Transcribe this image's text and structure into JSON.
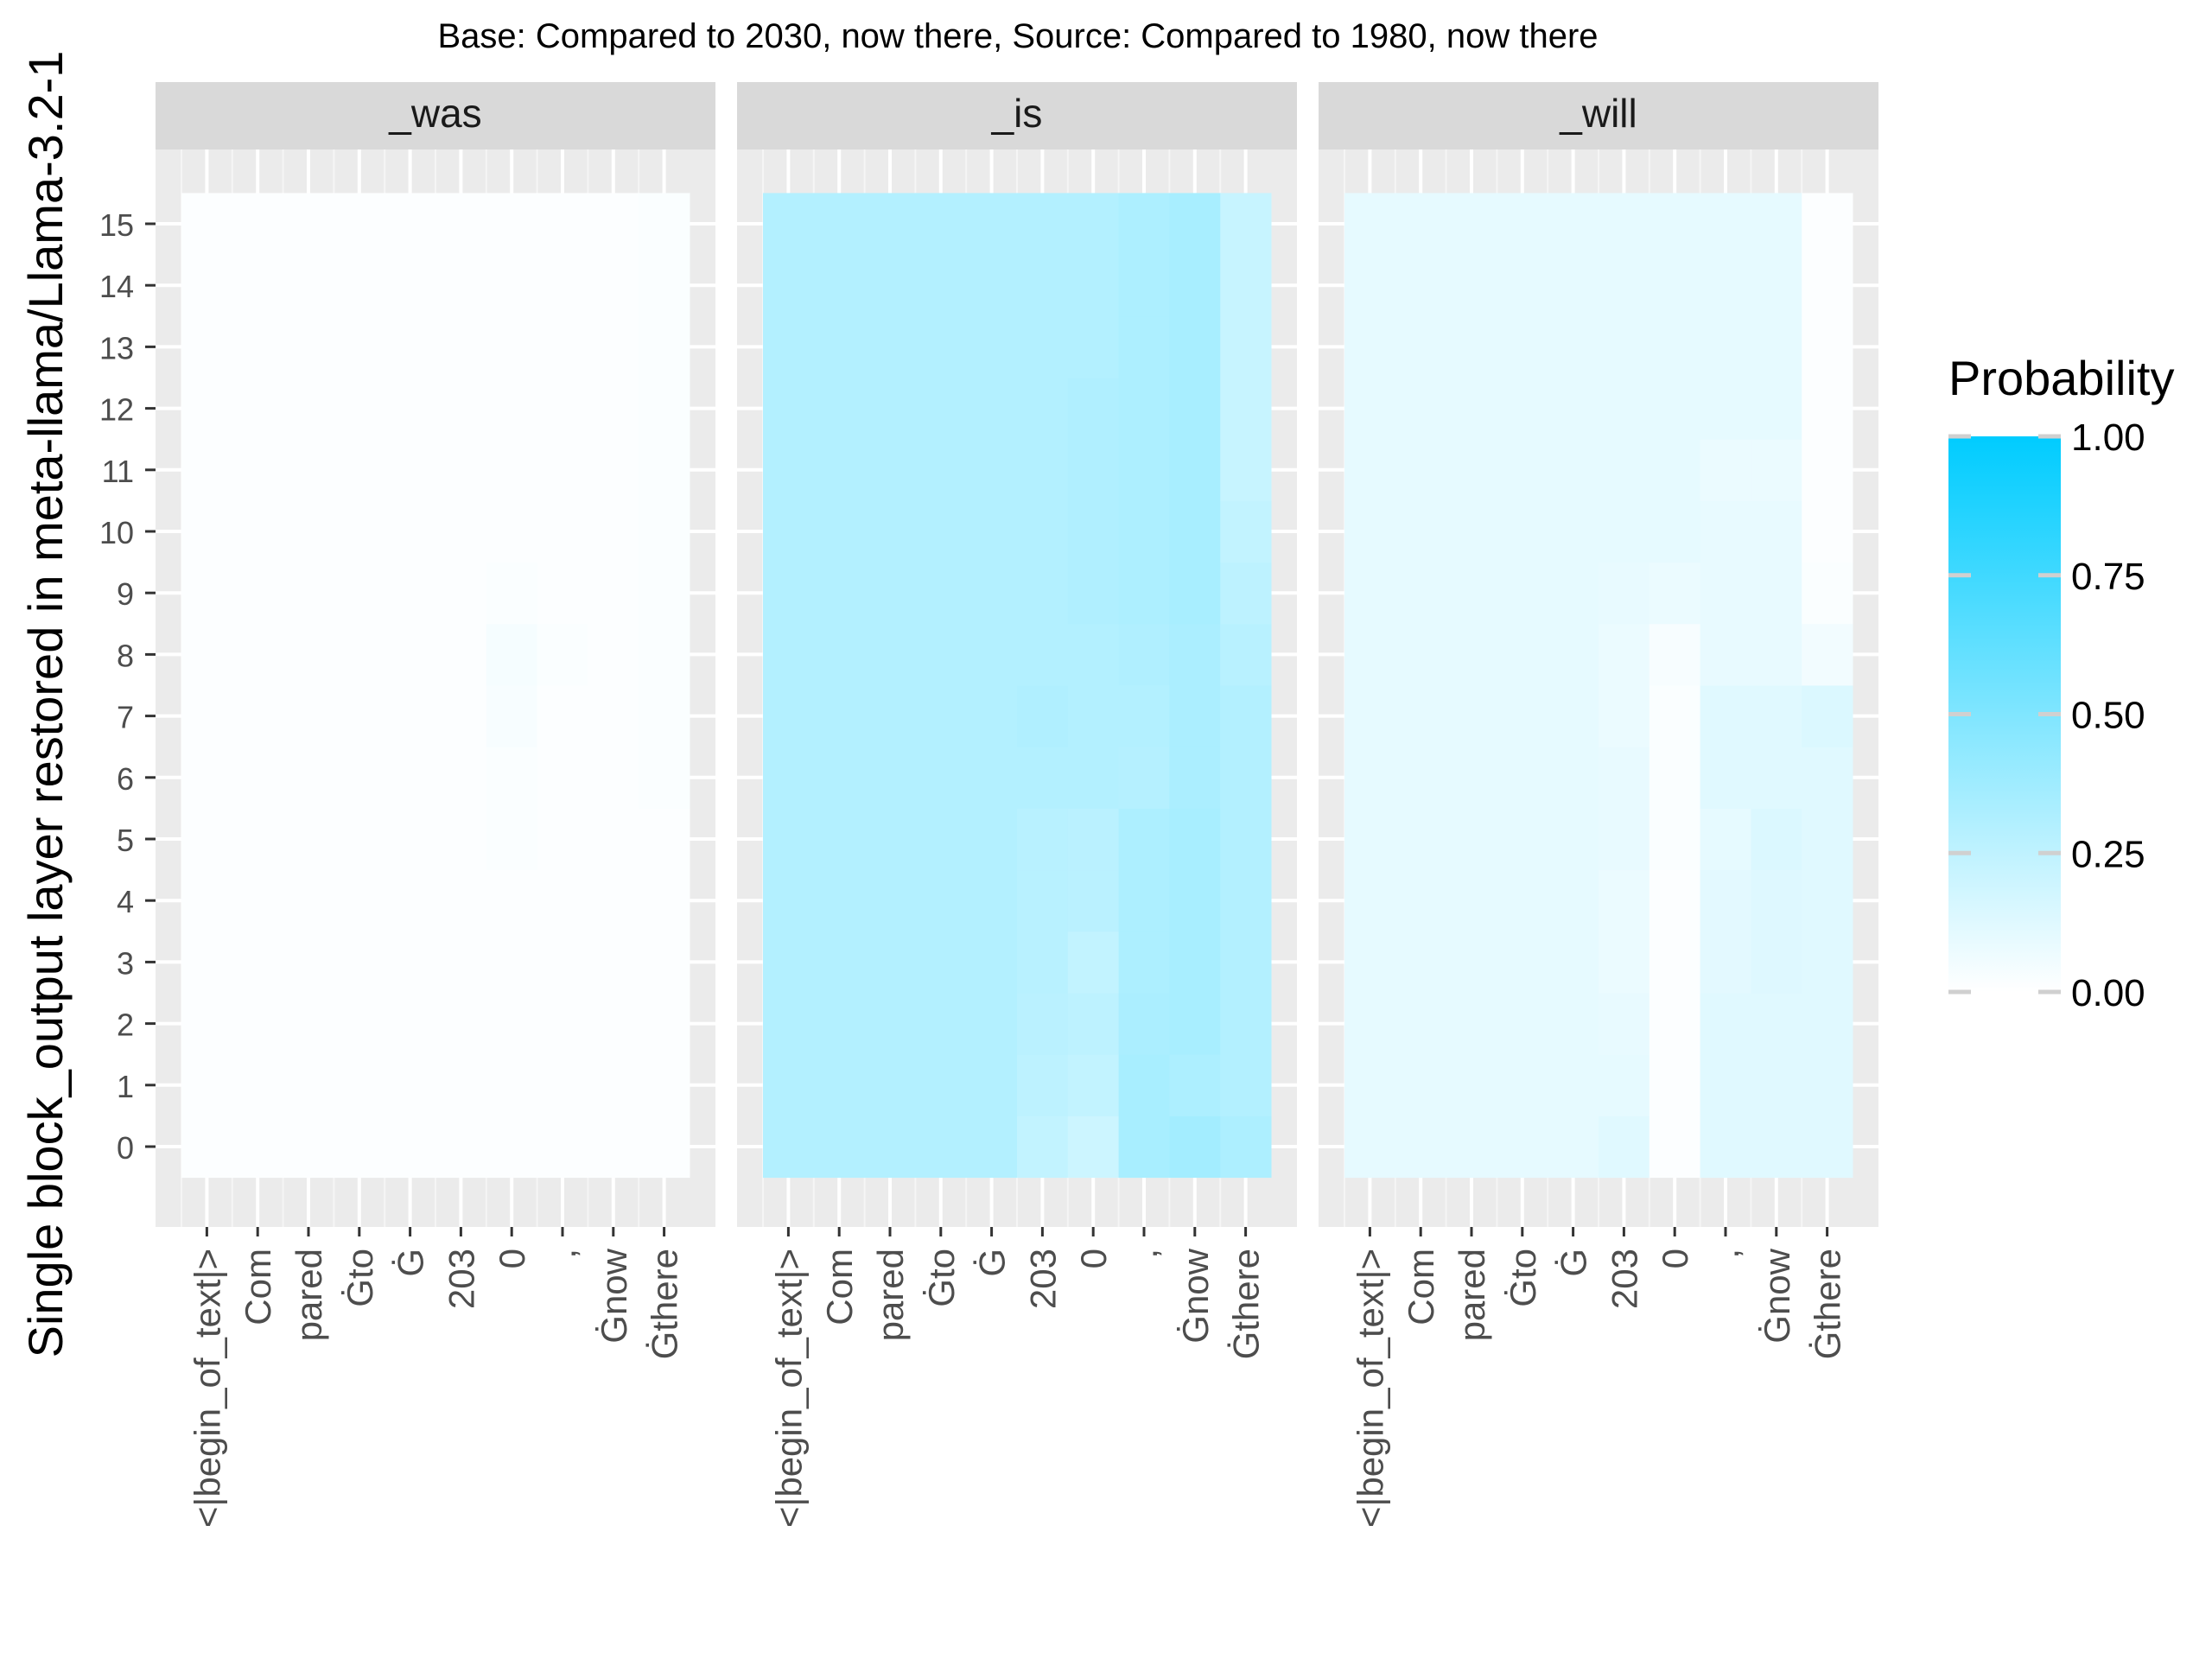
{
  "chart_data": {
    "type": "heatmap",
    "title": "Base: Compared to 2030, now there, Source: Compared to 1980, now there",
    "ylabel": "Single block_output layer restored in meta-llama/Llama-3.2-1",
    "xlabel": "",
    "x_tokens": [
      "<|begin_of_text|>",
      "Com",
      "pared",
      "Ġto",
      "Ġ",
      "203",
      "0",
      ",",
      "Ġnow",
      "Ġthere"
    ],
    "y_layers": [
      0,
      1,
      2,
      3,
      4,
      5,
      6,
      7,
      8,
      9,
      10,
      11,
      12,
      13,
      14,
      15
    ],
    "y_ticks": [
      "0",
      "1",
      "2",
      "3",
      "4",
      "5",
      "6",
      "7",
      "8",
      "9",
      "10",
      "11",
      "12",
      "13",
      "14",
      "15"
    ],
    "legend": {
      "title": "Probability",
      "position": "right",
      "ticks": [
        "1.00",
        "0.75",
        "0.50",
        "0.25",
        "0.00"
      ],
      "tick_values": [
        1.0,
        0.75,
        0.5,
        0.25,
        0.0
      ],
      "color_low": "#ffffff",
      "color_high": "#00ccff"
    },
    "panel_strip_color": "#d9d9d9",
    "panel_background": "#ebebeb",
    "grid": true,
    "panels": [
      {
        "name": "_was",
        "values": [
          [
            0.01,
            0.01,
            0.01,
            0.01,
            0.01,
            0.01,
            0.01,
            0.01,
            0.01,
            0.01
          ],
          [
            0.01,
            0.01,
            0.01,
            0.01,
            0.01,
            0.01,
            0.01,
            0.01,
            0.01,
            0.01
          ],
          [
            0.01,
            0.01,
            0.01,
            0.01,
            0.01,
            0.01,
            0.01,
            0.01,
            0.01,
            0.01
          ],
          [
            0.01,
            0.01,
            0.01,
            0.01,
            0.01,
            0.01,
            0.01,
            0.01,
            0.01,
            0.01
          ],
          [
            0.01,
            0.01,
            0.01,
            0.01,
            0.01,
            0.01,
            0.01,
            0.01,
            0.01,
            0.01
          ],
          [
            0.01,
            0.01,
            0.01,
            0.01,
            0.01,
            0.01,
            0.02,
            0.01,
            0.01,
            0.01
          ],
          [
            0.01,
            0.01,
            0.01,
            0.01,
            0.01,
            0.01,
            0.02,
            0.01,
            0.01,
            0.02
          ],
          [
            0.01,
            0.01,
            0.01,
            0.01,
            0.01,
            0.01,
            0.03,
            0.01,
            0.01,
            0.02
          ],
          [
            0.01,
            0.01,
            0.01,
            0.01,
            0.01,
            0.01,
            0.04,
            0.02,
            0.01,
            0.02
          ],
          [
            0.01,
            0.01,
            0.01,
            0.01,
            0.01,
            0.01,
            0.02,
            0.01,
            0.01,
            0.02
          ],
          [
            0.01,
            0.01,
            0.01,
            0.01,
            0.01,
            0.01,
            0.01,
            0.01,
            0.01,
            0.02
          ],
          [
            0.01,
            0.01,
            0.01,
            0.01,
            0.01,
            0.01,
            0.01,
            0.01,
            0.01,
            0.02
          ],
          [
            0.01,
            0.01,
            0.01,
            0.01,
            0.01,
            0.01,
            0.01,
            0.01,
            0.01,
            0.02
          ],
          [
            0.01,
            0.01,
            0.01,
            0.01,
            0.01,
            0.01,
            0.01,
            0.01,
            0.01,
            0.02
          ],
          [
            0.01,
            0.01,
            0.01,
            0.01,
            0.01,
            0.01,
            0.01,
            0.01,
            0.01,
            0.02
          ],
          [
            0.01,
            0.01,
            0.01,
            0.01,
            0.01,
            0.01,
            0.01,
            0.01,
            0.01,
            0.02
          ]
        ]
      },
      {
        "name": "_is",
        "values": [
          [
            0.3,
            0.3,
            0.3,
            0.3,
            0.3,
            0.24,
            0.2,
            0.34,
            0.36,
            0.32
          ],
          [
            0.3,
            0.3,
            0.3,
            0.3,
            0.3,
            0.26,
            0.24,
            0.34,
            0.32,
            0.3
          ],
          [
            0.3,
            0.3,
            0.3,
            0.3,
            0.3,
            0.27,
            0.26,
            0.33,
            0.34,
            0.3
          ],
          [
            0.3,
            0.3,
            0.3,
            0.3,
            0.3,
            0.28,
            0.24,
            0.32,
            0.34,
            0.3
          ],
          [
            0.3,
            0.3,
            0.3,
            0.3,
            0.3,
            0.28,
            0.27,
            0.32,
            0.34,
            0.3
          ],
          [
            0.3,
            0.3,
            0.3,
            0.3,
            0.3,
            0.28,
            0.27,
            0.32,
            0.34,
            0.3
          ],
          [
            0.3,
            0.3,
            0.3,
            0.3,
            0.3,
            0.3,
            0.3,
            0.29,
            0.33,
            0.3
          ],
          [
            0.3,
            0.3,
            0.3,
            0.3,
            0.3,
            0.31,
            0.3,
            0.3,
            0.33,
            0.3
          ],
          [
            0.3,
            0.3,
            0.3,
            0.3,
            0.3,
            0.3,
            0.3,
            0.31,
            0.33,
            0.28
          ],
          [
            0.3,
            0.3,
            0.3,
            0.3,
            0.3,
            0.3,
            0.31,
            0.32,
            0.34,
            0.26
          ],
          [
            0.3,
            0.3,
            0.3,
            0.3,
            0.3,
            0.3,
            0.31,
            0.32,
            0.34,
            0.24
          ],
          [
            0.3,
            0.3,
            0.3,
            0.3,
            0.3,
            0.3,
            0.31,
            0.32,
            0.34,
            0.22
          ],
          [
            0.3,
            0.3,
            0.3,
            0.3,
            0.3,
            0.3,
            0.31,
            0.32,
            0.34,
            0.22
          ],
          [
            0.3,
            0.3,
            0.3,
            0.3,
            0.3,
            0.3,
            0.3,
            0.32,
            0.34,
            0.22
          ],
          [
            0.3,
            0.3,
            0.3,
            0.3,
            0.3,
            0.3,
            0.3,
            0.32,
            0.34,
            0.22
          ],
          [
            0.3,
            0.3,
            0.3,
            0.3,
            0.3,
            0.3,
            0.3,
            0.32,
            0.34,
            0.22
          ]
        ]
      },
      {
        "name": "_will",
        "values": [
          [
            0.1,
            0.1,
            0.1,
            0.1,
            0.1,
            0.12,
            0.01,
            0.12,
            0.12,
            0.12
          ],
          [
            0.1,
            0.1,
            0.1,
            0.1,
            0.1,
            0.1,
            0.01,
            0.12,
            0.12,
            0.12
          ],
          [
            0.1,
            0.1,
            0.1,
            0.1,
            0.1,
            0.09,
            0.01,
            0.12,
            0.12,
            0.12
          ],
          [
            0.1,
            0.1,
            0.1,
            0.1,
            0.1,
            0.08,
            0.01,
            0.11,
            0.13,
            0.12
          ],
          [
            0.1,
            0.1,
            0.1,
            0.1,
            0.1,
            0.08,
            0.01,
            0.11,
            0.13,
            0.12
          ],
          [
            0.1,
            0.1,
            0.1,
            0.1,
            0.1,
            0.09,
            0.02,
            0.1,
            0.14,
            0.12
          ],
          [
            0.1,
            0.1,
            0.1,
            0.1,
            0.1,
            0.09,
            0.02,
            0.12,
            0.12,
            0.12
          ],
          [
            0.1,
            0.1,
            0.1,
            0.1,
            0.1,
            0.08,
            0.02,
            0.12,
            0.12,
            0.14
          ],
          [
            0.1,
            0.1,
            0.1,
            0.1,
            0.1,
            0.08,
            0.03,
            0.09,
            0.09,
            0.05
          ],
          [
            0.1,
            0.1,
            0.1,
            0.1,
            0.1,
            0.09,
            0.08,
            0.09,
            0.09,
            0.02
          ],
          [
            0.1,
            0.1,
            0.1,
            0.1,
            0.1,
            0.1,
            0.1,
            0.09,
            0.09,
            0.01
          ],
          [
            0.1,
            0.1,
            0.1,
            0.1,
            0.1,
            0.1,
            0.1,
            0.08,
            0.08,
            0.01
          ],
          [
            0.1,
            0.1,
            0.1,
            0.1,
            0.1,
            0.1,
            0.1,
            0.1,
            0.1,
            0.01
          ],
          [
            0.1,
            0.1,
            0.1,
            0.1,
            0.1,
            0.1,
            0.1,
            0.1,
            0.1,
            0.01
          ],
          [
            0.1,
            0.1,
            0.1,
            0.1,
            0.1,
            0.1,
            0.1,
            0.1,
            0.1,
            0.01
          ],
          [
            0.1,
            0.1,
            0.1,
            0.1,
            0.1,
            0.1,
            0.1,
            0.1,
            0.1,
            0.01
          ]
        ]
      }
    ]
  }
}
